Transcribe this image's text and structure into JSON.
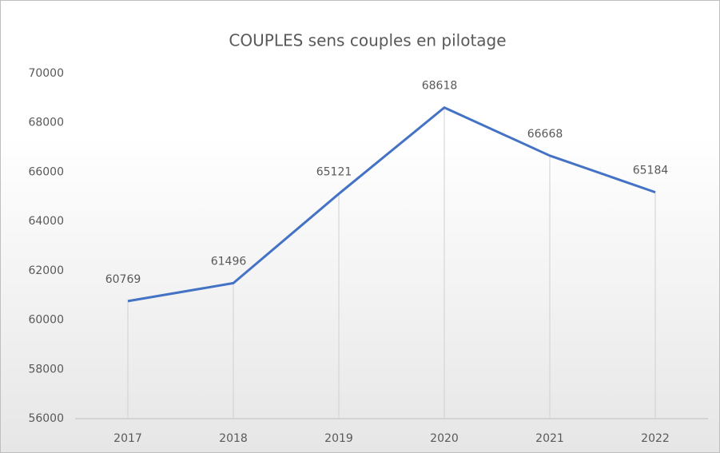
{
  "chart_data": {
    "type": "line",
    "title": "COUPLES sens couples en pilotage",
    "categories": [
      "2017",
      "2018",
      "2019",
      "2020",
      "2021",
      "2022"
    ],
    "values": [
      60769,
      61496,
      65121,
      68618,
      66668,
      65184
    ],
    "color": "#4472c4",
    "ylim": [
      56000,
      70000
    ],
    "yticks": [
      56000,
      58000,
      60000,
      62000,
      64000,
      66000,
      68000,
      70000
    ],
    "grid": false,
    "drop_lines": true,
    "data_labels": true
  }
}
